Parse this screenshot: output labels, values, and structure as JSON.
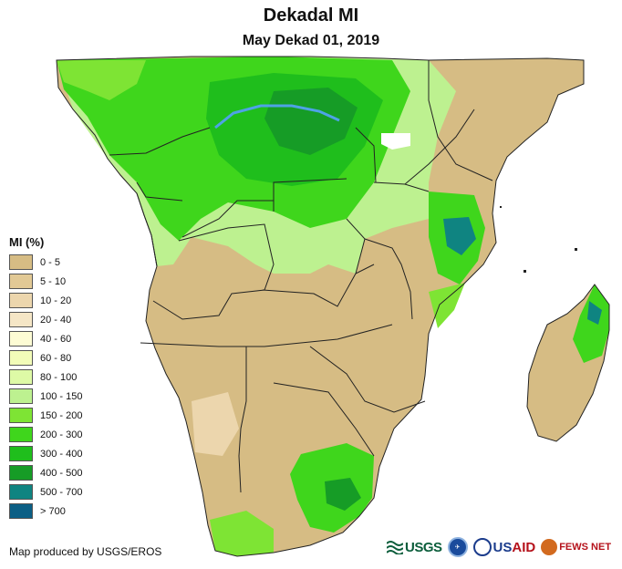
{
  "title": "Dekadal MI",
  "subtitle": "May Dekad 01, 2019",
  "legend": {
    "title": "MI (%)",
    "items": [
      {
        "label": "0 - 5",
        "color": "#d6bc84"
      },
      {
        "label": "5 - 10",
        "color": "#e2c995"
      },
      {
        "label": "10 - 20",
        "color": "#ecd6ad"
      },
      {
        "label": "20 - 40",
        "color": "#f5e6c6"
      },
      {
        "label": "40 - 60",
        "color": "#fdfcd4"
      },
      {
        "label": "60 - 80",
        "color": "#f2fcb8"
      },
      {
        "label": "80 - 100",
        "color": "#defaa6"
      },
      {
        "label": "100 - 150",
        "color": "#bdf190"
      },
      {
        "label": "150 - 200",
        "color": "#7ee434"
      },
      {
        "label": "200 - 300",
        "color": "#3fd61c"
      },
      {
        "label": "300 - 400",
        "color": "#1fbe1c"
      },
      {
        "label": "400 - 500",
        "color": "#169c26"
      },
      {
        "label": "500 - 700",
        "color": "#0f8481"
      },
      {
        "label": "> 700",
        "color": "#0b5f85"
      }
    ]
  },
  "credit": "Map produced by USGS/EROS",
  "logos": {
    "usgs": "USGS",
    "usaid_a": "US",
    "usaid_b": "AID",
    "fews": "FEWS NET"
  },
  "colors": {
    "water": "#4ea3e6",
    "border": "#222222"
  }
}
